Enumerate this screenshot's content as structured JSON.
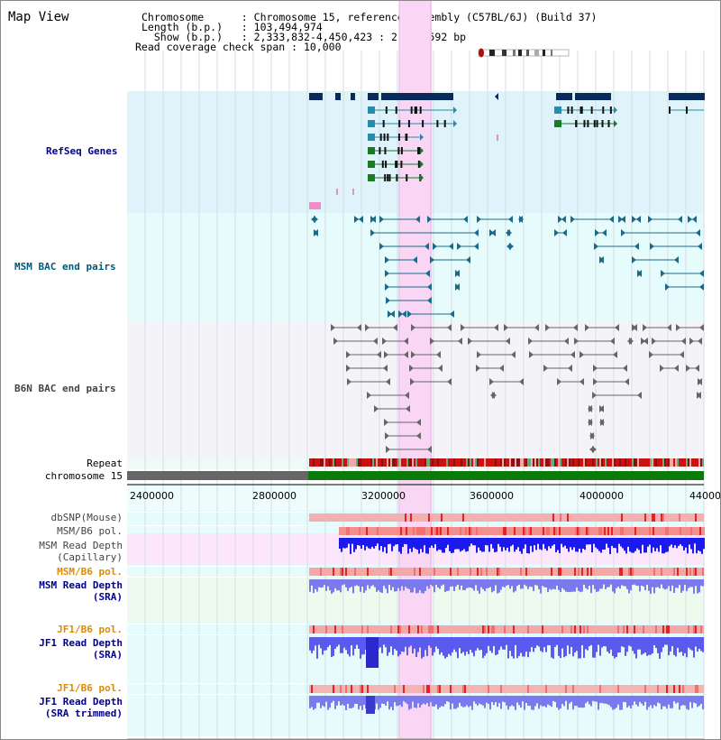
{
  "view": {
    "title": "Map View",
    "info": [
      {
        "label": "Chromosome      ",
        "value": "Chromosome 15, reference assembly (C57BL/6J) (Build 37)"
      },
      {
        "label": "Length (b.p.)   ",
        "value": "103,494,974"
      },
      {
        "label": "  Show (b.p.)   ",
        "value": "2,333,832-4,450,423 : 2,116,592 bp"
      },
      {
        "label": "Read coverage check span",
        "value": "10,000"
      }
    ]
  },
  "tracks": {
    "refseq": "RefSeq Genes",
    "msm_bac": "MSM BAC end pairs",
    "b6n_bac": "B6N BAC end pairs",
    "repeat": "Repeat",
    "chromosome": "chromosome 15",
    "dbsnp": "dbSNP(Mouse)",
    "msm_b6_pol_1": "MSM/B6 pol.",
    "msm_depth_cap": "MSM Read Depth\n(Capillary)",
    "msm_b6_pol_2": "MSM/B6 pol.",
    "msm_depth_sra": "MSM Read Depth\n(SRA)",
    "jf1_b6_pol_1": "JF1/B6 pol.",
    "jf1_depth_sra": "JF1 Read Depth\n(SRA)",
    "jf1_b6_pol_2": "JF1/B6 pol.",
    "jf1_depth_trim": "JF1 Read Depth\n(SRA trimmed)"
  },
  "axis": {
    "ticks": [
      "2400000",
      "2800000",
      "3200000",
      "3600000",
      "4000000",
      "44000"
    ]
  },
  "colors": {
    "refseq_bg": "#dff3fb",
    "msm_bg": "#e6fbfb",
    "b6n_bg": "#f4f4f8",
    "highlight": "#f8d6f4",
    "gene_dark": "#0a2a5c",
    "gene_teal": "#2a8aaa",
    "gene_green": "#1a7a2a",
    "bac_msm": "#1a6a8a",
    "bac_b6n": "#666666",
    "chrom_gray": "#666666",
    "chrom_green": "#0a7a0a",
    "depth_blue": "#1a1aee",
    "depth_light": "#7a7aee",
    "label_blue": "#00008b",
    "label_orange": "#e08a00",
    "label_teal": "#005a7a"
  }
}
